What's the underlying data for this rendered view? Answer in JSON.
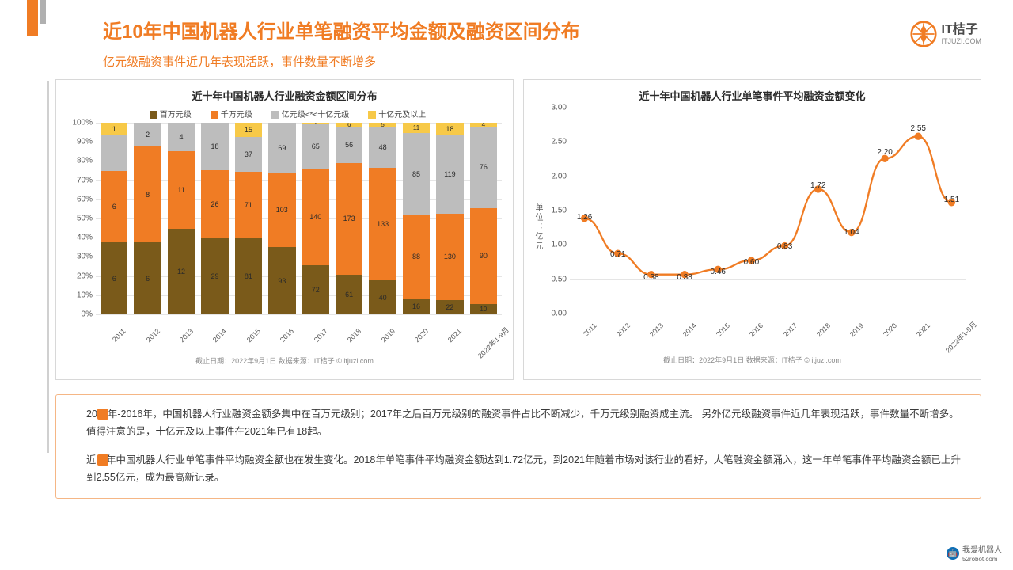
{
  "header": {
    "title": "近10年中国机器人行业单笔融资平均金额及融资区间分布",
    "subtitle": "亿元级融资事件近几年表现活跃，事件数量不断增多"
  },
  "logo": {
    "brand": "IT桔子",
    "domain": "ITJUZI.COM"
  },
  "bar_chart": {
    "title": "近十年中国机器人行业融资金额区间分布",
    "type": "stacked-bar-100",
    "note": "截止日期：2022年9月1日    数据来源：IT桔子 © itjuzi.com",
    "categories": [
      "2011",
      "2012",
      "2013",
      "2014",
      "2015",
      "2016",
      "2017",
      "2018",
      "2019",
      "2020",
      "2021",
      "2022年1-9月"
    ],
    "ylim": [
      0,
      100
    ],
    "ytick_step": 10,
    "ysuffix": "%",
    "series": [
      {
        "name": "百万元级",
        "color": "#7a5a1a"
      },
      {
        "name": "千万元级",
        "color": "#f07c24"
      },
      {
        "name": "亿元级<*<十亿元级",
        "color": "#bdbdbd"
      },
      {
        "name": "十亿元及以上",
        "color": "#f7c948"
      }
    ],
    "stacks": [
      {
        "values": [
          6,
          6,
          3,
          1
        ],
        "labels": [
          "6",
          "6",
          "",
          "1"
        ]
      },
      {
        "values": [
          6,
          8,
          2,
          0
        ],
        "labels": [
          "6",
          "8",
          "2",
          ""
        ]
      },
      {
        "values": [
          12,
          11,
          4,
          0
        ],
        "labels": [
          "12",
          "11",
          "4",
          ""
        ]
      },
      {
        "values": [
          29,
          26,
          18,
          0
        ],
        "labels": [
          "29",
          "26",
          "18",
          ""
        ]
      },
      {
        "values": [
          81,
          71,
          37,
          15
        ],
        "labels": [
          "81",
          "71",
          "37",
          "15"
        ]
      },
      {
        "values": [
          93,
          103,
          69,
          0
        ],
        "labels": [
          "93",
          "103",
          "69",
          ""
        ]
      },
      {
        "values": [
          72,
          140,
          65,
          2
        ],
        "labels": [
          "72",
          "140",
          "65",
          "2"
        ]
      },
      {
        "values": [
          61,
          173,
          56,
          6
        ],
        "labels": [
          "61",
          "173",
          "56",
          "6"
        ]
      },
      {
        "values": [
          40,
          133,
          48,
          5
        ],
        "labels": [
          "40",
          "133",
          "48",
          "5"
        ]
      },
      {
        "values": [
          16,
          88,
          85,
          11
        ],
        "labels": [
          "16",
          "88",
          "85",
          "11"
        ]
      },
      {
        "values": [
          22,
          130,
          119,
          18
        ],
        "labels": [
          "22",
          "130",
          "119",
          "18"
        ]
      },
      {
        "values": [
          10,
          90,
          76,
          4
        ],
        "labels": [
          "10",
          "90",
          "76",
          "4"
        ]
      }
    ]
  },
  "line_chart": {
    "title": "近十年中国机器人行业单笔事件平均融资金额变化",
    "type": "line",
    "note": "截止日期：2022年9月1日    数据来源：IT桔子 © itjuzi.com",
    "ylabel": "单位：亿元",
    "categories": [
      "2011",
      "2012",
      "2013",
      "2014",
      "2015",
      "2016",
      "2017",
      "2018",
      "2019",
      "2020",
      "2021",
      "2022年1-9月"
    ],
    "ylim": [
      0,
      3.0
    ],
    "ytick_step": 0.5,
    "color": "#f07c24",
    "line_width": 2.5,
    "marker": "circle",
    "marker_size": 5,
    "values": [
      1.26,
      0.71,
      0.38,
      0.38,
      0.46,
      0.6,
      0.83,
      1.72,
      1.04,
      2.2,
      2.55,
      1.51
    ],
    "labels": [
      "1.26",
      "0.71",
      "0.38",
      "0.38",
      "0.46",
      "0.60",
      "0.83",
      "1.72",
      "1.04",
      "2.20",
      "2.55",
      "1.51"
    ]
  },
  "notes_box": {
    "border_color": "#f5b685",
    "bullet_color": "#f07c24",
    "paras": [
      "2011年-2016年，中国机器人行业融资金额多集中在百万元级别；2017年之后百万元级别的融资事件占比不断减少，千万元级别融资成主流。 另外亿元级融资事件近几年表现活跃，事件数量不断增多。值得注意的是，十亿元及以上事件在2021年已有18起。",
      "近十年中国机器人行业单笔事件平均融资金额也在发生变化。2018年单笔事件平均融资金额达到1.72亿元，到2021年随着市场对该行业的看好，大笔融资金额涌入，这一年单笔事件平均融资金额已上升到2.55亿元，成为最高新记录。"
    ]
  },
  "footer": {
    "site": "我爱机器人",
    "domain": "52robot.com"
  },
  "colors": {
    "accent": "#f07c24",
    "grid": "#e5e5e5",
    "text": "#3a3a3a",
    "background": "#ffffff"
  }
}
